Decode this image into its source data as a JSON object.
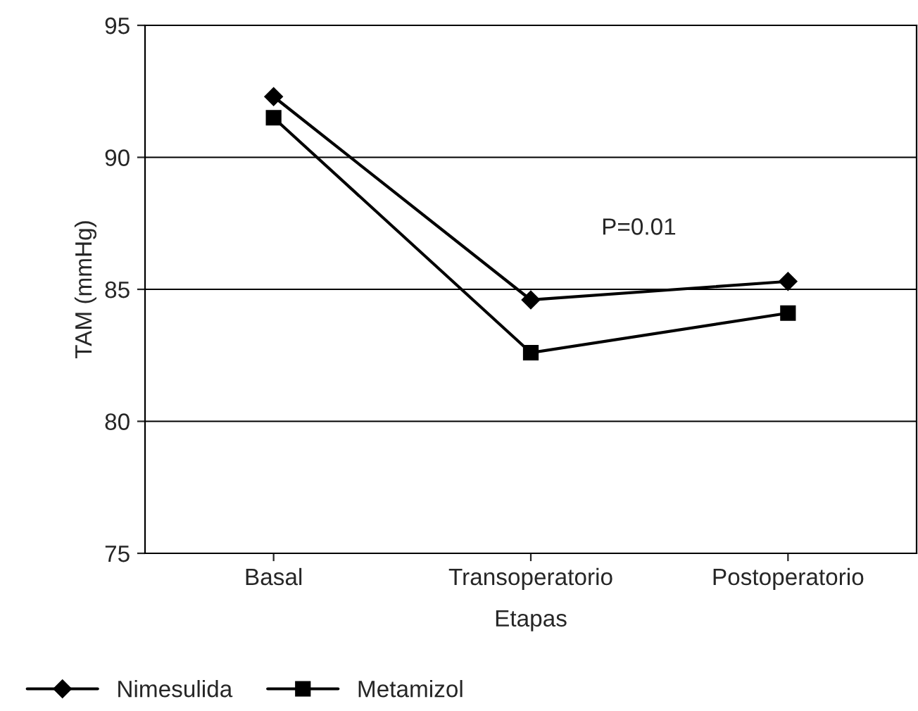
{
  "chart_data": {
    "type": "line",
    "xlabel": "Etapas",
    "ylabel": "TAM (mmHg)",
    "categories": [
      "Basal",
      "Transoperatorio",
      "Postoperatorio"
    ],
    "series": [
      {
        "name": "Nimesulida",
        "color": "#000000",
        "marker": "diamond",
        "values": [
          92.3,
          84.6,
          85.3
        ]
      },
      {
        "name": "Metamizol",
        "color": "#000000",
        "marker": "square",
        "values": [
          91.5,
          82.6,
          84.1
        ]
      }
    ],
    "ylim": [
      75,
      95
    ],
    "yticks": [
      75,
      80,
      85,
      90,
      95
    ],
    "grid": "y",
    "legend": "bottom",
    "line_style": "solid",
    "annotations": [
      "P=0.01"
    ]
  }
}
